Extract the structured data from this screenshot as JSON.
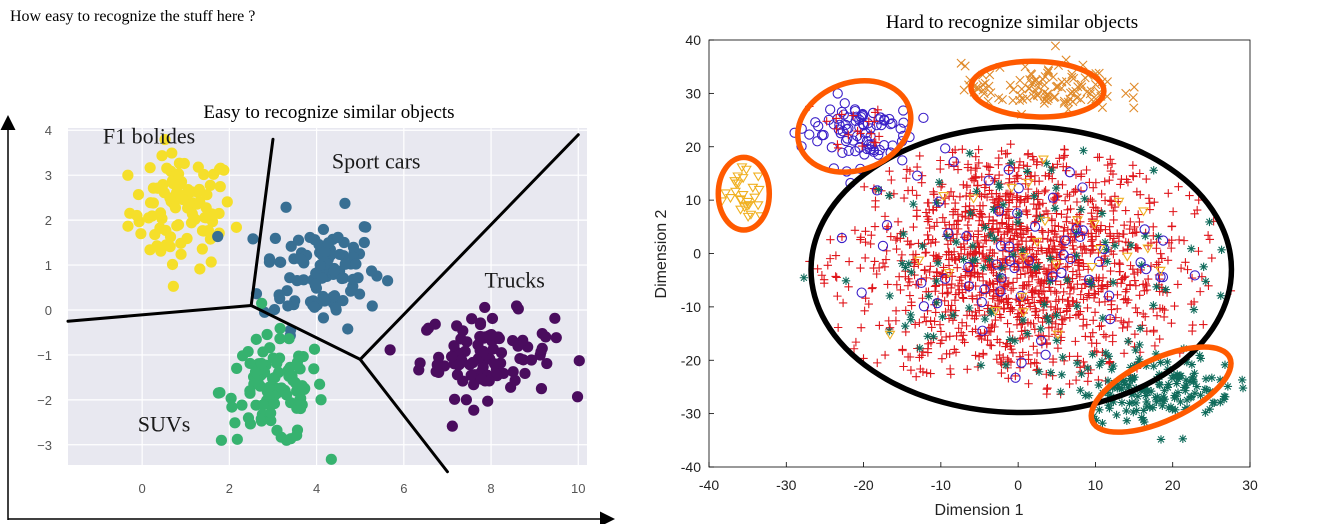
{
  "page": {
    "heading": "How easy to recognize the stuff here ?"
  },
  "colors": {
    "plot_bg": "#e8e8f0",
    "yellow": "#f5df2a",
    "blue": "#386f93",
    "green": "#36b26f",
    "purple": "#4a0c5e",
    "red_plus": "#e0161b",
    "teal_star": "#0f6b5b",
    "violet_circle": "#3a1fc8",
    "orange_x": "#e08a2a",
    "gold_tri": "#f0b020",
    "highlight": "#ff5a00",
    "outline": "#000000"
  },
  "chart_data": [
    {
      "type": "scatter",
      "title": "Easy to recognize similar objects",
      "xlim": [
        -1.7,
        10.2
      ],
      "ylim": [
        -3.45,
        4.05
      ],
      "x_ticks": [
        "0",
        "2",
        "4",
        "6",
        "8",
        "10"
      ],
      "y_ticks": [
        "4",
        "3",
        "2",
        "1",
        "0",
        "−1",
        "−2",
        "−3"
      ],
      "grid": true,
      "clusters": [
        {
          "label": "F1 bolides",
          "color": "yellow",
          "center": [
            0.9,
            2.2
          ],
          "spread": [
            0.7,
            0.75
          ],
          "count": 95
        },
        {
          "label": "Sport cars",
          "color": "blue",
          "center": [
            4.1,
            0.9
          ],
          "spread": [
            0.8,
            0.75
          ],
          "count": 100
        },
        {
          "label": "Trucks",
          "color": "purple",
          "center": [
            7.9,
            -1.0
          ],
          "spread": [
            0.9,
            0.55
          ],
          "count": 100
        },
        {
          "label": "SUVs",
          "color": "green",
          "center": [
            3.0,
            -1.8
          ],
          "spread": [
            0.7,
            0.7
          ],
          "count": 100
        }
      ],
      "label_positions": [
        {
          "text": "F1 bolides",
          "x": -0.9,
          "y": 3.7
        },
        {
          "text": "Sport cars",
          "x": 4.35,
          "y": 3.15
        },
        {
          "text": "Trucks",
          "x": 7.85,
          "y": 0.5
        },
        {
          "text": "SUVs",
          "x": -0.1,
          "y": -2.7
        }
      ],
      "boundaries": [
        [
          [
            -1.7,
            -0.25
          ],
          [
            2.5,
            0.1
          ]
        ],
        [
          [
            2.5,
            0.1
          ],
          [
            3.0,
            3.8
          ]
        ],
        [
          [
            2.5,
            0.1
          ],
          [
            5.0,
            -1.1
          ]
        ],
        [
          [
            5.0,
            -1.1
          ],
          [
            10.0,
            3.9
          ]
        ],
        [
          [
            5.0,
            -1.1
          ],
          [
            7.0,
            -3.6
          ]
        ]
      ]
    },
    {
      "type": "scatter",
      "title": "Hard to recognize similar objects",
      "xlabel": "Dimension 1",
      "ylabel": "Dimension 2",
      "xlim": [
        -40,
        30
      ],
      "ylim": [
        -40,
        40
      ],
      "x_ticks": [
        -40,
        -30,
        -20,
        -10,
        0,
        10,
        20,
        30
      ],
      "y_ticks": [
        40,
        30,
        20,
        10,
        0,
        -10,
        -20,
        -30,
        -40
      ],
      "grid": false,
      "series": [
        {
          "marker": "plus",
          "color": "red_plus",
          "center": [
            0,
            -2
          ],
          "spread": [
            10.5,
            12
          ],
          "count": 1400,
          "clip_ellipse": [
            0,
            -3,
            28,
            24
          ]
        },
        {
          "marker": "star",
          "color": "teal_star",
          "center": [
            0,
            -3
          ],
          "spread": [
            14,
            12
          ],
          "count": 120,
          "clip_ellipse": [
            0,
            -3,
            28,
            24
          ]
        },
        {
          "marker": "circle",
          "color": "violet_circle",
          "center": [
            -2,
            2
          ],
          "spread": [
            10,
            10
          ],
          "count": 60,
          "clip_ellipse": [
            0,
            -3,
            25,
            22
          ]
        },
        {
          "marker": "tri",
          "color": "gold_tri",
          "center": [
            0,
            0
          ],
          "spread": [
            12,
            11
          ],
          "count": 25,
          "clip_ellipse": [
            0,
            -3,
            25,
            22
          ]
        },
        {
          "marker": "circle",
          "color": "violet_circle",
          "center": [
            -21,
            23
          ],
          "spread": [
            3.5,
            3.3
          ],
          "count": 90
        },
        {
          "marker": "plus",
          "color": "red_plus",
          "center": [
            -21,
            23
          ],
          "spread": [
            3.5,
            3.3
          ],
          "count": 20
        },
        {
          "marker": "x",
          "color": "orange_x",
          "center": [
            3,
            31
          ],
          "spread": [
            5,
            2.2
          ],
          "count": 110
        },
        {
          "marker": "tri",
          "color": "gold_tri",
          "center": [
            -35.5,
            11
          ],
          "spread": [
            1.3,
            2.4
          ],
          "count": 28
        },
        {
          "marker": "star",
          "color": "teal_star",
          "center": [
            18,
            -25
          ],
          "spread": [
            5.2,
            3.2
          ],
          "count": 160
        }
      ],
      "highlights": [
        {
          "cx": -21.2,
          "cy": 23.8,
          "rx": 7.5,
          "ry": 8.2,
          "rot": -20
        },
        {
          "cx": 2.5,
          "cy": 30.8,
          "rx": 8.6,
          "ry": 5.2,
          "rot": 2
        },
        {
          "cx": -35.5,
          "cy": 11.2,
          "rx": 3.3,
          "ry": 6.8,
          "rot": 0
        },
        {
          "cx": 18.5,
          "cy": -25.5,
          "rx": 9.8,
          "ry": 5.8,
          "rot": -25
        }
      ],
      "outline": {
        "cx": 0.4,
        "cy": -3,
        "rx": 27.2,
        "ry": 26.8
      }
    }
  ]
}
